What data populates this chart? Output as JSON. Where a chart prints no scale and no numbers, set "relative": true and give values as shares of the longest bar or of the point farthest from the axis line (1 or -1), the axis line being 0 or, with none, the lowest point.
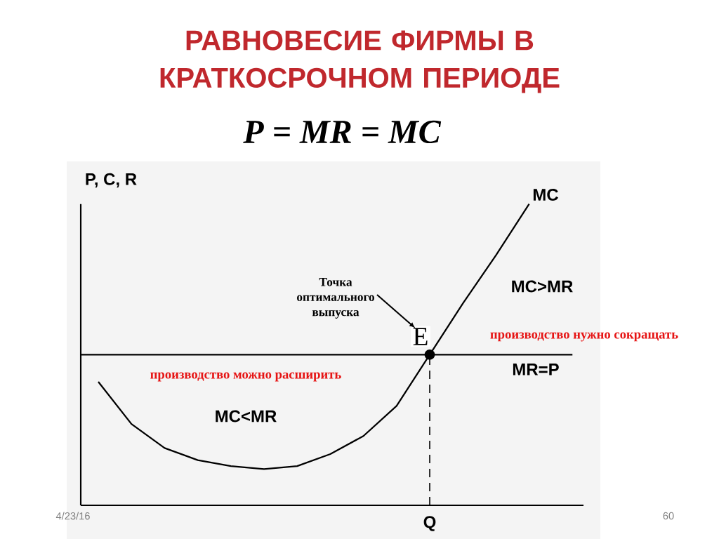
{
  "chart_data": {
    "type": "line",
    "relative": true,
    "title": "РАВНОВЕСИЕ ФИРМЫ В КРАТКОСРОЧНОМ ПЕРИОДЕ",
    "subtitle": "P = MR = MC",
    "ylabel": "P, C, R",
    "categories": [
      null,
      null,
      null,
      null,
      null,
      null,
      null,
      null,
      null,
      null,
      null,
      null,
      null,
      null
    ],
    "series": [
      {
        "name": "MC",
        "color": "#000000",
        "values": [
          0.41,
          0.27,
          0.19,
          0.15,
          0.13,
          0.12,
          0.13,
          0.17,
          0.23,
          0.33,
          0.5,
          0.67,
          0.83,
          1
        ]
      }
    ],
    "ref_lines": [
      {
        "axis": "y",
        "value": 0.5,
        "label": "MR=P",
        "color": "#000000"
      }
    ],
    "annotations": [
      "Точка оптимального выпуска",
      {
        "text": "E",
        "y": 0.5
      },
      "MC>MR",
      "MC<MR",
      "производство нужно сокращать",
      "производство можно расширить",
      "Q",
      "4/23/16",
      "60"
    ]
  }
}
